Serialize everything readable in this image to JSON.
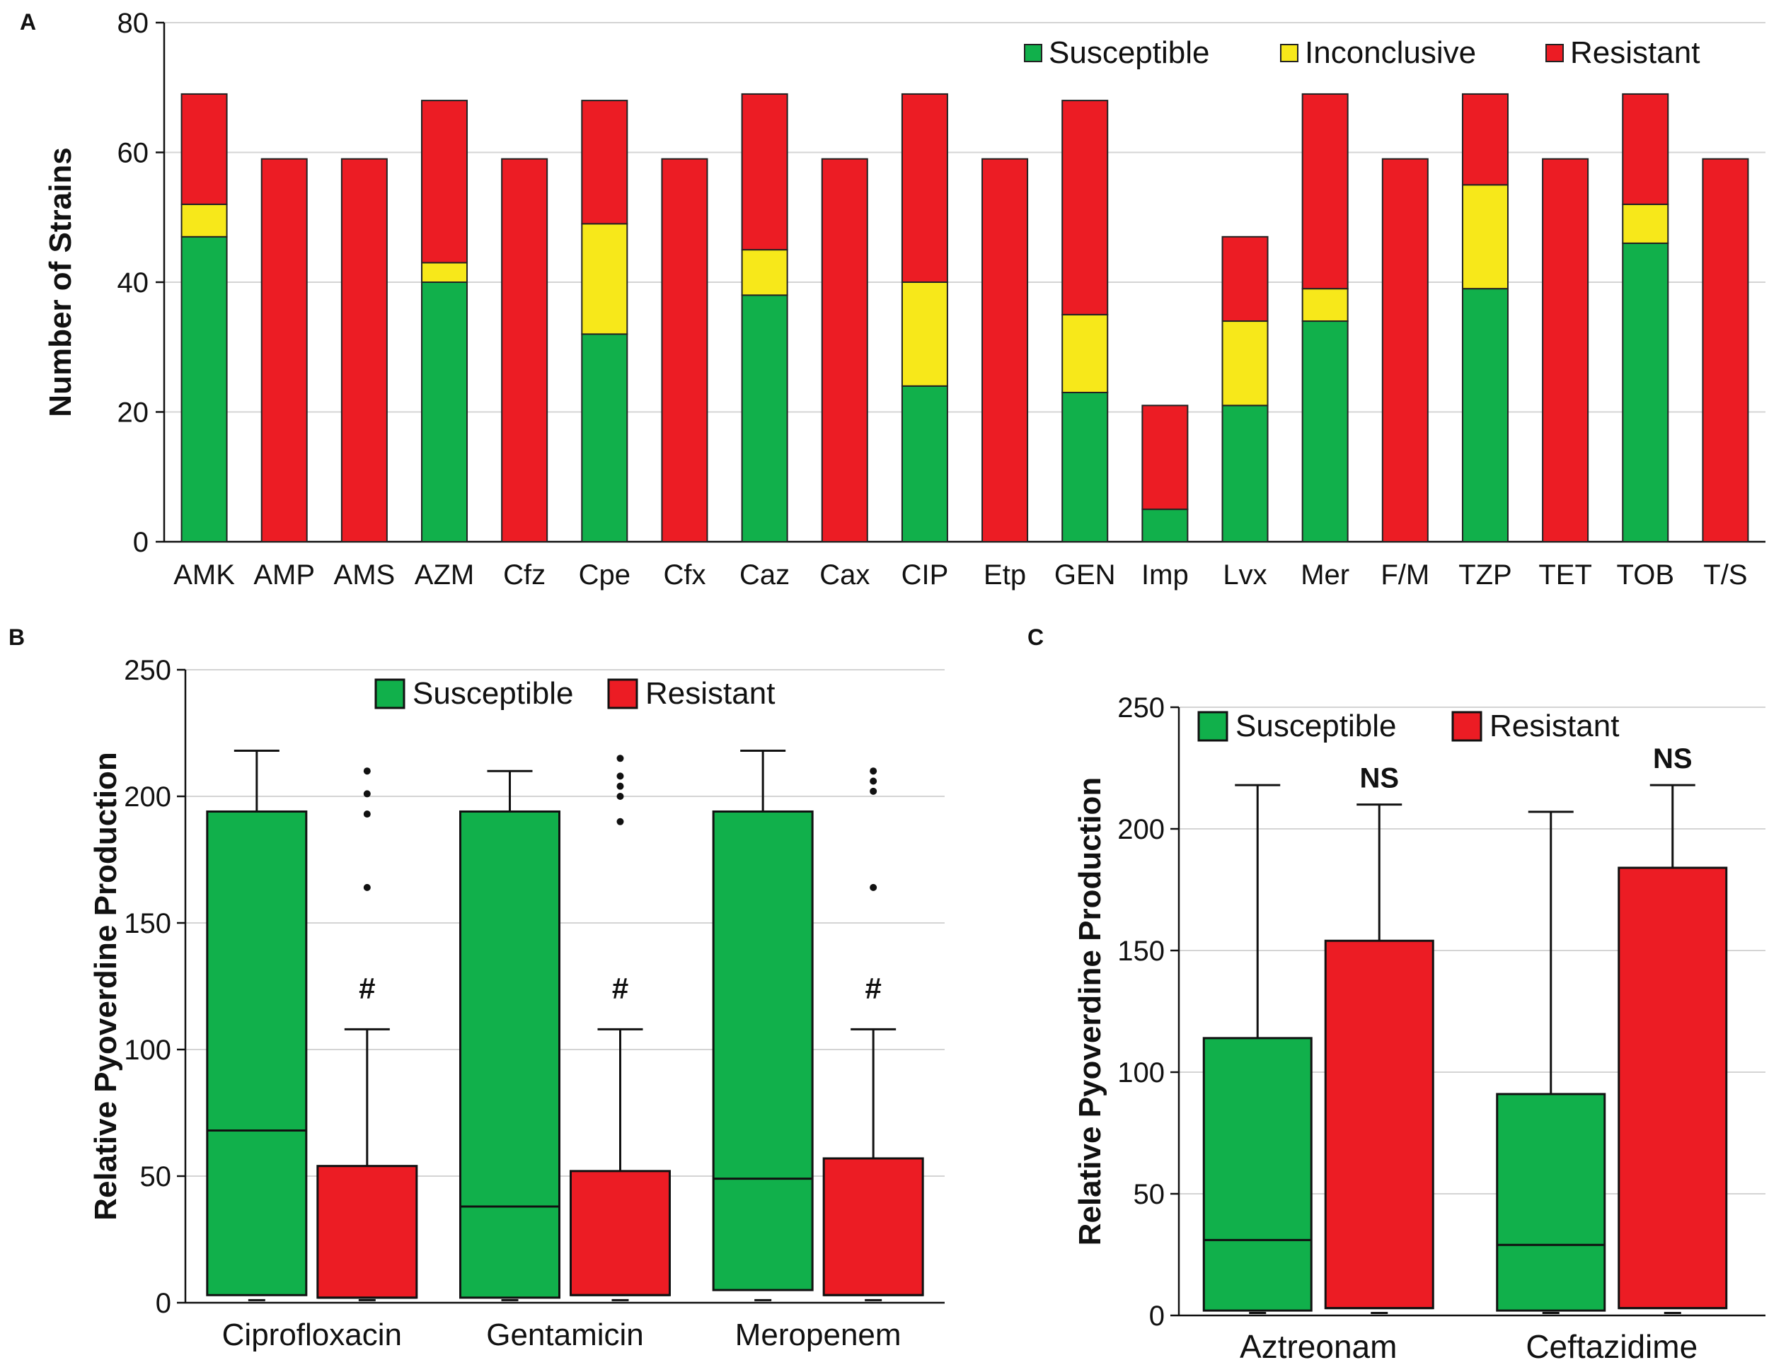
{
  "colors": {
    "susceptible": "#11b04b",
    "inconclusive": "#f7e81a",
    "resistant": "#ec1c24",
    "grid": "#d4d4d4",
    "axis": "#111111"
  },
  "chart_data": [
    {
      "panel": "A",
      "type": "bar",
      "stacked": true,
      "ylabel": "Number of Strains",
      "ylim": [
        0,
        80
      ],
      "yticks": [
        0,
        20,
        40,
        60,
        80
      ],
      "legend_position": "top-right",
      "categories": [
        "AMK",
        "AMP",
        "AMS",
        "AZM",
        "Cfz",
        "Cpe",
        "Cfx",
        "Caz",
        "Cax",
        "CIP",
        "Etp",
        "GEN",
        "Imp",
        "Lvx",
        "Mer",
        "F/M",
        "TZP",
        "TET",
        "TOB",
        "T/S"
      ],
      "series": [
        {
          "name": "Susceptible",
          "color_key": "susceptible",
          "values": [
            47,
            0,
            0,
            40,
            0,
            32,
            0,
            38,
            0,
            24,
            0,
            23,
            5,
            21,
            34,
            0,
            39,
            0,
            46,
            0
          ]
        },
        {
          "name": "Inconclusive",
          "color_key": "inconclusive",
          "values": [
            5,
            0,
            0,
            3,
            0,
            17,
            0,
            7,
            0,
            16,
            0,
            12,
            0,
            13,
            5,
            0,
            16,
            0,
            6,
            0
          ]
        },
        {
          "name": "Resistant",
          "color_key": "resistant",
          "values": [
            17,
            59,
            59,
            25,
            59,
            19,
            59,
            24,
            59,
            29,
            59,
            33,
            16,
            13,
            30,
            59,
            14,
            59,
            17,
            59
          ]
        }
      ]
    },
    {
      "panel": "B",
      "type": "box",
      "ylabel": "Relative Pyoverdine Production",
      "ylim": [
        0,
        250
      ],
      "yticks": [
        0,
        50,
        100,
        150,
        200,
        250
      ],
      "legend": [
        "Susceptible",
        "Resistant"
      ],
      "categories": [
        "Ciprofloxacin",
        "Gentamicin",
        "Meropenem"
      ],
      "groups": [
        {
          "category": "Ciprofloxacin",
          "susceptible": {
            "min": 1,
            "q1": 3,
            "median": 68,
            "q3": 194,
            "max": 218
          },
          "resistant": {
            "min": 1,
            "q1": 2,
            "median": 2,
            "q3": 54,
            "max": 108,
            "outliers": [
              210,
              201,
              193,
              164
            ]
          },
          "annotation": "#"
        },
        {
          "category": "Gentamicin",
          "susceptible": {
            "min": 1,
            "q1": 2,
            "median": 38,
            "q3": 194,
            "max": 210
          },
          "resistant": {
            "min": 1,
            "q1": 3,
            "median": 3,
            "q3": 52,
            "max": 108,
            "outliers": [
              215,
              208,
              204,
              200,
              190
            ]
          },
          "annotation": "#"
        },
        {
          "category": "Meropenem",
          "susceptible": {
            "min": 1,
            "q1": 5,
            "median": 49,
            "q3": 194,
            "max": 218
          },
          "resistant": {
            "min": 1,
            "q1": 3,
            "median": 3,
            "q3": 57,
            "max": 108,
            "outliers": [
              210,
              206,
              202,
              164
            ]
          },
          "annotation": "#"
        }
      ]
    },
    {
      "panel": "C",
      "type": "box",
      "ylabel": "Relative Pyoverdine Production",
      "ylim": [
        0,
        250
      ],
      "yticks": [
        0,
        50,
        100,
        150,
        200,
        250
      ],
      "legend": [
        "Susceptible",
        "Resistant"
      ],
      "categories": [
        "Aztreonam",
        "Ceftazidime"
      ],
      "groups": [
        {
          "category": "Aztreonam",
          "susceptible": {
            "min": 1,
            "q1": 2,
            "median": 31,
            "q3": 114,
            "max": 218
          },
          "resistant": {
            "min": 1,
            "q1": 3,
            "median": 3,
            "q3": 154,
            "max": 210
          },
          "annotation": "NS"
        },
        {
          "category": "Ceftazidime",
          "susceptible": {
            "min": 1,
            "q1": 2,
            "median": 29,
            "q3": 91,
            "max": 207
          },
          "resistant": {
            "min": 1,
            "q1": 3,
            "median": 3,
            "q3": 184,
            "max": 218
          },
          "annotation": "NS"
        }
      ]
    }
  ]
}
